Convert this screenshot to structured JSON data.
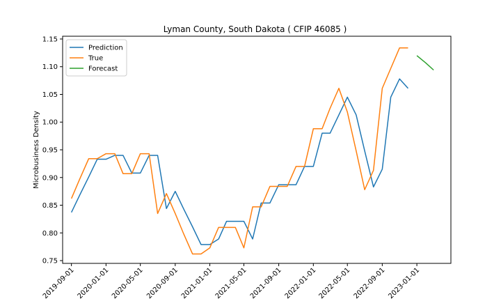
{
  "chart_data": {
    "type": "line",
    "title": "Lyman County, South Dakota ( CFIP 46085 )",
    "xlabel": "",
    "ylabel": "Microbusiness Density",
    "x_ticks": [
      "2019-09-01",
      "2020-01-01",
      "2020-05-01",
      "2020-09-01",
      "2021-01-01",
      "2021-05-01",
      "2021-09-01",
      "2022-01-01",
      "2022-05-01",
      "2022-09-01",
      "2023-01-01"
    ],
    "y_ticks": [
      "0.75",
      "0.80",
      "0.85",
      "0.90",
      "0.95",
      "1.00",
      "1.05",
      "1.10",
      "1.15"
    ],
    "xlim": [
      "2019-08-01",
      "2023-05-01"
    ],
    "ylim": [
      0.745,
      1.155
    ],
    "grid": false,
    "legend_position": "upper-left",
    "series": [
      {
        "name": "Prediction",
        "color": "#1f77b4",
        "points": [
          [
            "2019-09-01",
            0.837
          ],
          [
            "2019-10-01",
            0.869
          ],
          [
            "2019-11-01",
            0.901
          ],
          [
            "2019-12-01",
            0.933
          ],
          [
            "2020-01-01",
            0.933
          ],
          [
            "2020-02-01",
            0.94
          ],
          [
            "2020-03-01",
            0.94
          ],
          [
            "2020-04-01",
            0.908
          ],
          [
            "2020-05-01",
            0.908
          ],
          [
            "2020-06-01",
            0.94
          ],
          [
            "2020-07-01",
            0.94
          ],
          [
            "2020-08-01",
            0.844
          ],
          [
            "2020-09-01",
            0.875
          ],
          [
            "2020-10-01",
            0.843
          ],
          [
            "2020-11-01",
            0.811
          ],
          [
            "2020-12-01",
            0.779
          ],
          [
            "2021-01-01",
            0.779
          ],
          [
            "2021-02-01",
            0.789
          ],
          [
            "2021-03-01",
            0.821
          ],
          [
            "2021-04-01",
            0.821
          ],
          [
            "2021-05-01",
            0.821
          ],
          [
            "2021-06-01",
            0.789
          ],
          [
            "2021-07-01",
            0.854
          ],
          [
            "2021-08-01",
            0.854
          ],
          [
            "2021-09-01",
            0.887
          ],
          [
            "2021-10-01",
            0.887
          ],
          [
            "2021-11-01",
            0.887
          ],
          [
            "2021-12-01",
            0.92
          ],
          [
            "2022-01-01",
            0.92
          ],
          [
            "2022-02-01",
            0.98
          ],
          [
            "2022-03-01",
            0.98
          ],
          [
            "2022-04-01",
            1.013
          ],
          [
            "2022-05-01",
            1.045
          ],
          [
            "2022-06-01",
            1.013
          ],
          [
            "2022-07-01",
            0.948
          ],
          [
            "2022-08-01",
            0.883
          ],
          [
            "2022-09-01",
            0.915
          ],
          [
            "2022-10-01",
            1.045
          ],
          [
            "2022-11-01",
            1.078
          ],
          [
            "2022-12-01",
            1.061
          ]
        ]
      },
      {
        "name": "True",
        "color": "#ff7f0e",
        "points": [
          [
            "2019-09-01",
            0.862
          ],
          [
            "2019-10-01",
            0.898
          ],
          [
            "2019-11-01",
            0.934
          ],
          [
            "2019-12-01",
            0.934
          ],
          [
            "2020-01-01",
            0.943
          ],
          [
            "2020-02-01",
            0.943
          ],
          [
            "2020-03-01",
            0.907
          ],
          [
            "2020-04-01",
            0.907
          ],
          [
            "2020-05-01",
            0.943
          ],
          [
            "2020-06-01",
            0.943
          ],
          [
            "2020-07-01",
            0.835
          ],
          [
            "2020-08-01",
            0.871
          ],
          [
            "2020-09-01",
            0.835
          ],
          [
            "2020-10-01",
            0.798
          ],
          [
            "2020-11-01",
            0.762
          ],
          [
            "2020-12-01",
            0.762
          ],
          [
            "2021-01-01",
            0.773
          ],
          [
            "2021-02-01",
            0.81
          ],
          [
            "2021-03-01",
            0.81
          ],
          [
            "2021-04-01",
            0.81
          ],
          [
            "2021-05-01",
            0.773
          ],
          [
            "2021-06-01",
            0.847
          ],
          [
            "2021-07-01",
            0.847
          ],
          [
            "2021-08-01",
            0.884
          ],
          [
            "2021-09-01",
            0.884
          ],
          [
            "2021-10-01",
            0.884
          ],
          [
            "2021-11-01",
            0.92
          ],
          [
            "2021-12-01",
            0.92
          ],
          [
            "2022-01-01",
            0.988
          ],
          [
            "2022-02-01",
            0.988
          ],
          [
            "2022-03-01",
            1.025
          ],
          [
            "2022-04-01",
            1.061
          ],
          [
            "2022-05-01",
            1.018
          ],
          [
            "2022-06-01",
            0.948
          ],
          [
            "2022-07-01",
            0.878
          ],
          [
            "2022-08-01",
            0.913
          ],
          [
            "2022-09-01",
            1.061
          ],
          [
            "2022-10-01",
            1.097
          ],
          [
            "2022-11-01",
            1.134
          ],
          [
            "2022-12-01",
            1.134
          ]
        ]
      },
      {
        "name": "Forecast",
        "color": "#2ca02c",
        "points": [
          [
            "2023-01-01",
            1.12
          ],
          [
            "2023-02-01",
            1.107
          ],
          [
            "2023-03-01",
            1.094
          ]
        ]
      }
    ]
  }
}
